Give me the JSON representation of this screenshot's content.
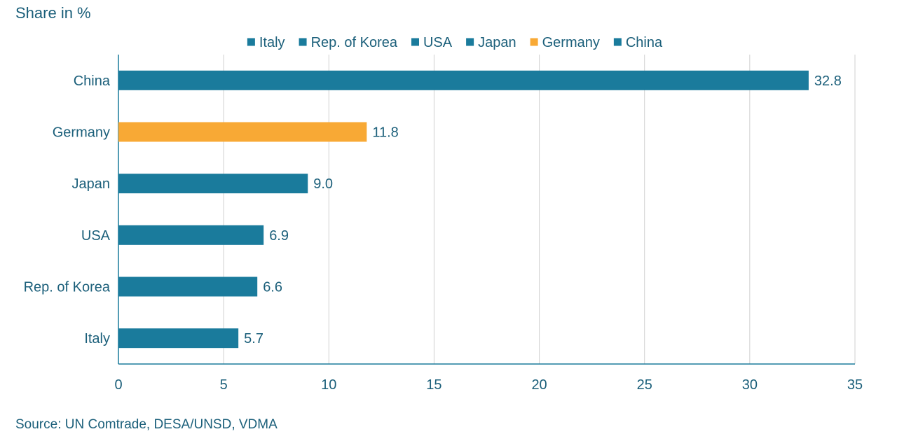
{
  "y_axis_title": "Share in %",
  "source": "Source: UN Comtrade, DESA/UNSD, VDMA",
  "colors": {
    "default_bar": "#1a7b9c",
    "highlight_bar": "#f8a935",
    "text": "#1b5f7a",
    "grid": "#d0d0d0",
    "axis": "#1a7b9c"
  },
  "chart_data": {
    "type": "bar",
    "orientation": "horizontal",
    "categories": [
      "China",
      "Germany",
      "Japan",
      "USA",
      "Rep. of Korea",
      "Italy"
    ],
    "values": [
      32.8,
      11.8,
      9.0,
      6.9,
      6.6,
      5.7
    ],
    "value_labels": [
      "32.8",
      "11.8",
      "9.0",
      "6.9",
      "6.6",
      "5.7"
    ],
    "highlight": "Germany",
    "xlim": [
      0,
      35
    ],
    "x_ticks": [
      0,
      5,
      10,
      15,
      20,
      25,
      30,
      35
    ],
    "ylabel": "Share in %",
    "grid": true,
    "legend": {
      "placement": "top",
      "entries": [
        "Italy",
        "Rep. of Korea",
        "USA",
        "Japan",
        "Germany",
        "China"
      ]
    }
  }
}
